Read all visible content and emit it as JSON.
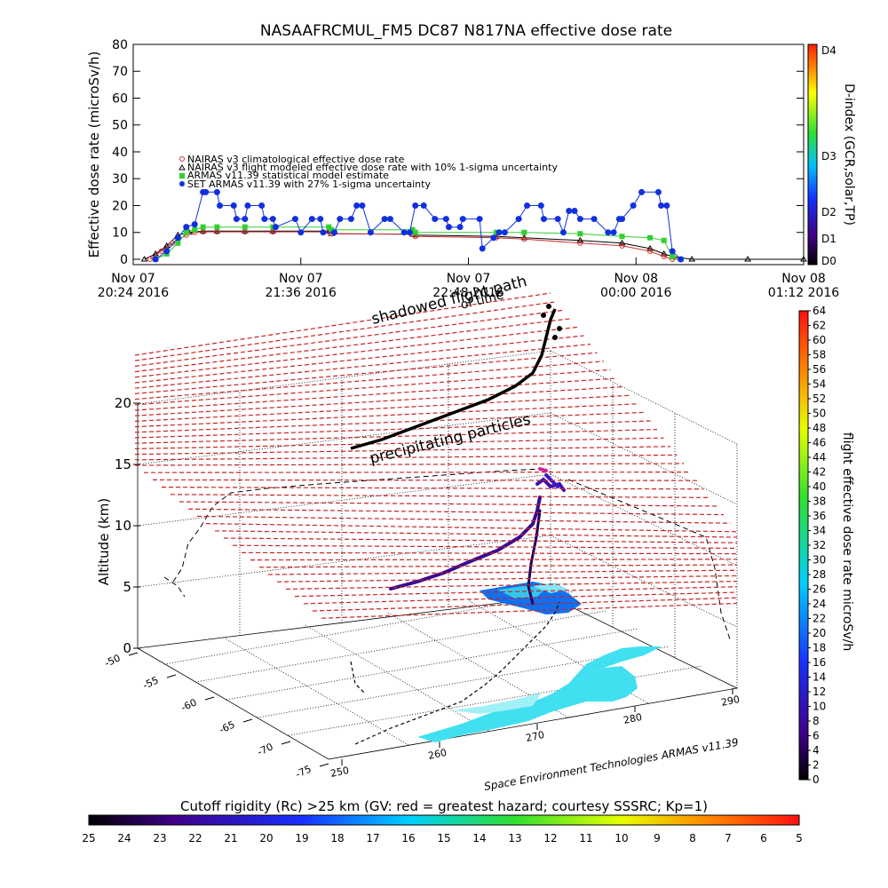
{
  "title": "NASAAFRCMUL_FM5 DC87 N817NA effective dose rate",
  "chart_data": [
    {
      "type": "line",
      "title": "NASAAFRCMUL_FM5 DC87 N817NA effective dose rate",
      "ylabel": "Effective dose rate (microSv/h)",
      "ylim": [
        0,
        80
      ],
      "yticks": [
        "0",
        "10",
        "20",
        "30",
        "40",
        "50",
        "60",
        "70",
        "80"
      ],
      "xticks": [
        {
          "date": "Nov 07",
          "time": "20:24 2016"
        },
        {
          "date": "Nov 07",
          "time": "21:36 2016"
        },
        {
          "date": "Nov 07",
          "time": "22:48 2016"
        },
        {
          "date": "Nov 08",
          "time": "00:00 2016"
        },
        {
          "date": "Nov 08",
          "time": "01:12 2016"
        }
      ],
      "x_units": "minutes after 20:24 UTC Nov 07 2016",
      "legend": [
        {
          "label": "NAIRAS v3 climatological effective dose rate",
          "color": "#d03030",
          "marker": "circle"
        },
        {
          "label": "NAIRAS v3 flight modeled effective dose rate with 10% 1-sigma uncertainty",
          "color": "#000000",
          "marker": "triangle"
        },
        {
          "label": "ARMAS v11.39 statistical model estimate",
          "color": "#30d030",
          "marker": "star"
        },
        {
          "label": "SET ARMAS v11.39 with 27% 1-sigma uncertainty",
          "color": "#1030e0",
          "marker": "dot"
        }
      ],
      "series": [
        {
          "name": "SET ARMAS v11.39 with 27% 1-sigma uncertainty",
          "color": "#1030e0",
          "x": [
            8,
            12,
            16,
            19,
            22,
            25,
            26,
            30,
            31,
            36,
            37,
            40,
            41,
            46,
            47,
            50,
            51,
            58,
            60,
            64,
            67,
            68,
            72,
            74,
            78,
            80,
            82,
            85,
            90,
            92,
            97,
            99,
            101,
            104,
            108,
            112,
            113,
            117,
            118,
            124,
            125,
            129,
            131,
            133,
            138,
            141,
            146,
            147,
            152,
            154,
            156,
            158,
            160,
            165,
            170,
            172,
            174,
            175,
            179,
            182,
            188,
            189,
            191,
            193,
            196
          ],
          "y": [
            0,
            3,
            8,
            12,
            13,
            25,
            25,
            25,
            20,
            20,
            15,
            15,
            20,
            20,
            15,
            15,
            12,
            15,
            10,
            15,
            15,
            10,
            10,
            15,
            15,
            20,
            20,
            10,
            15,
            15,
            10,
            10,
            20,
            20,
            15,
            15,
            12,
            12,
            15,
            15,
            4,
            8,
            10,
            10,
            15,
            20,
            20,
            15,
            15,
            10,
            18,
            18,
            15,
            15,
            10,
            10,
            15,
            15,
            20,
            25,
            25,
            20,
            20,
            3,
            0
          ]
        },
        {
          "name": "ARMAS v11.39 statistical model estimate",
          "color": "#30d030",
          "x": [
            8,
            12,
            16,
            19,
            22,
            25,
            30,
            40,
            50,
            70,
            71,
            100,
            101,
            130,
            140,
            160,
            175,
            185,
            190,
            193,
            196
          ],
          "y": [
            0,
            2,
            6,
            10,
            11,
            12,
            12,
            12,
            12,
            12,
            11,
            11,
            10,
            10,
            10,
            9.5,
            8.5,
            8,
            7,
            1,
            0
          ]
        },
        {
          "name": "NAIRAS v3 climatological effective dose rate",
          "color": "#d03030",
          "x": [
            6,
            10,
            14,
            19,
            22,
            25,
            30,
            40,
            50,
            70,
            71,
            100,
            101,
            130,
            140,
            160,
            175,
            185,
            190,
            193,
            196
          ],
          "y": [
            0,
            3,
            6,
            9,
            10,
            10.2,
            10.2,
            10.2,
            10.2,
            10.2,
            9.5,
            9.3,
            8.5,
            8,
            7.5,
            6,
            5,
            3,
            1,
            0,
            0
          ]
        },
        {
          "name": "NAIRAS v3 flight modeled effective dose rate with 10% 1-sigma uncertainty",
          "color": "#000000",
          "x": [
            4,
            8,
            12,
            16,
            20,
            25,
            30,
            40,
            50,
            70,
            71,
            100,
            101,
            130,
            140,
            160,
            175,
            185,
            190,
            193,
            200,
            220,
            240
          ],
          "y": [
            0,
            2,
            5,
            9,
            10,
            10.5,
            10.5,
            10.5,
            10.5,
            10.5,
            9.5,
            9.3,
            9,
            8.5,
            8,
            7,
            6,
            4,
            2,
            1,
            0,
            0,
            0
          ]
        }
      ],
      "right_colorbar": {
        "title": "D-index (GCR,solar,TP)",
        "labels": [
          "D0",
          "D1",
          "D2",
          "D3",
          "D4"
        ]
      }
    },
    {
      "type": "scatter",
      "title": "",
      "zlabel": "Altitude (km)",
      "zticks": [
        "0",
        "5",
        "10",
        "15",
        "20"
      ],
      "lat_ticks": [
        "-50",
        "-55",
        "-60",
        "-65",
        "-70",
        "-75"
      ],
      "lon_ticks": [
        "250",
        "260",
        "270",
        "280",
        "290"
      ],
      "annotations": [
        "shadowed flight path",
        "of time",
        "precipitating particles"
      ],
      "colorbar": {
        "title": "flight effective dose rate microSv/h",
        "labels": [
          "0",
          "2",
          "4",
          "6",
          "8",
          "10",
          "12",
          "14",
          "16",
          "18",
          "20",
          "22",
          "24",
          "26",
          "28",
          "30",
          "32",
          "34",
          "36",
          "38",
          "40",
          "42",
          "44",
          "46",
          "48",
          "50",
          "52",
          "54",
          "56",
          "58",
          "60",
          "62",
          "64"
        ]
      }
    }
  ],
  "credit": "Space Environment Technologies ARMAS v11.39",
  "bottom_colorbar": {
    "title": "Cutoff rigidity (Rc) >25 km (GV: red = greatest hazard; courtesy SSSRC; Kp=1)",
    "labels": [
      "25",
      "24",
      "23",
      "22",
      "21",
      "20",
      "19",
      "18",
      "17",
      "16",
      "15",
      "14",
      "13",
      "12",
      "11",
      "10",
      "9",
      "8",
      "7",
      "6",
      "5"
    ]
  }
}
